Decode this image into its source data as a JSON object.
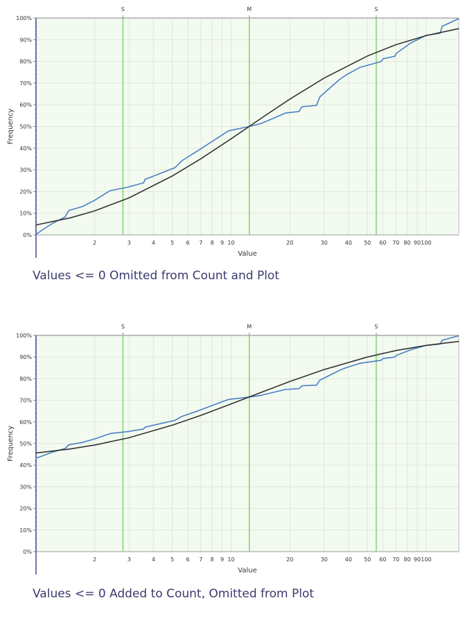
{
  "colors": {
    "plot_background": "#f3faf0",
    "grid": "#dfe7dd",
    "marker_line": "#7fd46f",
    "empirical": "#4a7fc4",
    "fitted": "#333333",
    "caption": "#3b3a6e"
  },
  "chart_data": [
    {
      "type": "line",
      "title": "",
      "caption": "Values <= 0 Omitted from Count and Plot",
      "xlabel": "Value",
      "ylabel": "Frequency",
      "x_scale": "log",
      "xlim": [
        1,
        147
      ],
      "ylim": [
        0,
        100
      ],
      "grid": true,
      "x_ticks": [
        "2",
        "3",
        "4",
        "5",
        "6",
        "7",
        "8",
        "9",
        "10",
        "20",
        "30",
        "40",
        "50",
        "60",
        "70",
        "80",
        "90",
        "100"
      ],
      "y_ticks": [
        "0%",
        "10%",
        "20%",
        "30%",
        "40%",
        "50%",
        "60%",
        "70%",
        "80%",
        "90%",
        "100%"
      ],
      "markers": [
        {
          "label": "S",
          "x": 2.79
        },
        {
          "label": "M",
          "x": 12.4
        },
        {
          "label": "S",
          "x": 55.5
        }
      ],
      "series": [
        {
          "kind": "empirical",
          "x": [
            1.0,
            1.13,
            1.22,
            1.41,
            1.47,
            1.73,
            2.0,
            2.4,
            2.95,
            3.56,
            3.62,
            5.15,
            5.59,
            6.8,
            8.0,
            9.7,
            12.4,
            14.3,
            19.0,
            22.3,
            23.1,
            27.4,
            28.5,
            31.8,
            35.9,
            39.0,
            45.9,
            58.7,
            60.1,
            69.2,
            70.3,
            83.5,
            100,
            118,
            121,
            147
          ],
          "y": [
            0.3,
            3.5,
            5.4,
            8.3,
            11.2,
            13.1,
            16.0,
            20.4,
            22.0,
            24.0,
            25.6,
            31.0,
            34.2,
            39.0,
            43.1,
            48.0,
            50.0,
            51.4,
            56.2,
            56.9,
            59.1,
            59.7,
            63.6,
            67.4,
            71.6,
            73.8,
            77.3,
            79.9,
            81.2,
            82.4,
            83.7,
            88.5,
            92.0,
            93.0,
            96.2,
            99.7
          ]
        },
        {
          "kind": "fitted",
          "x": [
            1,
            1.5,
            2,
            3,
            5,
            7,
            10,
            15,
            20,
            30,
            50,
            70,
            100,
            147
          ],
          "y": [
            4.6,
            7.9,
            11.1,
            17.1,
            27.2,
            35.1,
            44.3,
            55.1,
            62.6,
            72.3,
            82.5,
            87.7,
            91.9,
            95.1
          ]
        }
      ]
    },
    {
      "type": "line",
      "title": "",
      "caption": "Values <= 0 Added to Count, Omitted from Plot",
      "xlabel": "Value",
      "ylabel": "Frequency",
      "x_scale": "log",
      "xlim": [
        1,
        147
      ],
      "ylim": [
        0,
        100
      ],
      "grid": true,
      "x_ticks": [
        "2",
        "3",
        "4",
        "5",
        "6",
        "7",
        "8",
        "9",
        "10",
        "20",
        "30",
        "40",
        "50",
        "60",
        "70",
        "80",
        "90",
        "100"
      ],
      "y_ticks": [
        "0%",
        "10%",
        "20%",
        "30%",
        "40%",
        "50%",
        "60%",
        "70%",
        "80%",
        "90%",
        "100%"
      ],
      "markers": [
        {
          "label": "S",
          "x": 2.79
        },
        {
          "label": "M",
          "x": 12.4
        },
        {
          "label": "S",
          "x": 55.5
        }
      ],
      "series": [
        {
          "kind": "empirical",
          "x": [
            1.0,
            1.13,
            1.22,
            1.41,
            1.47,
            1.73,
            2.0,
            2.4,
            2.95,
            3.56,
            3.62,
            5.15,
            5.59,
            6.8,
            8.0,
            9.7,
            12.4,
            14.3,
            19.0,
            22.3,
            23.1,
            27.4,
            28.5,
            31.8,
            35.9,
            39.0,
            45.9,
            58.7,
            60.1,
            69.2,
            70.3,
            83.5,
            100,
            118,
            121,
            147
          ],
          "y": [
            43.2,
            45.0,
            46.1,
            47.7,
            49.4,
            50.5,
            52.1,
            54.6,
            55.5,
            56.7,
            57.6,
            60.7,
            62.5,
            65.2,
            67.6,
            70.4,
            71.5,
            72.3,
            75.0,
            75.4,
            76.7,
            77.0,
            79.3,
            81.4,
            83.8,
            85.1,
            87.1,
            88.5,
            89.3,
            90.0,
            90.7,
            93.4,
            95.4,
            96.0,
            97.8,
            99.8
          ]
        },
        {
          "kind": "fitted",
          "x": [
            1,
            1.5,
            2,
            3,
            5,
            7,
            10,
            15,
            20,
            30,
            50,
            70,
            100,
            147
          ],
          "y": [
            45.6,
            47.5,
            49.3,
            52.7,
            58.5,
            63.0,
            68.3,
            74.4,
            78.7,
            84.2,
            90.0,
            93.0,
            95.4,
            97.2
          ]
        }
      ]
    }
  ]
}
